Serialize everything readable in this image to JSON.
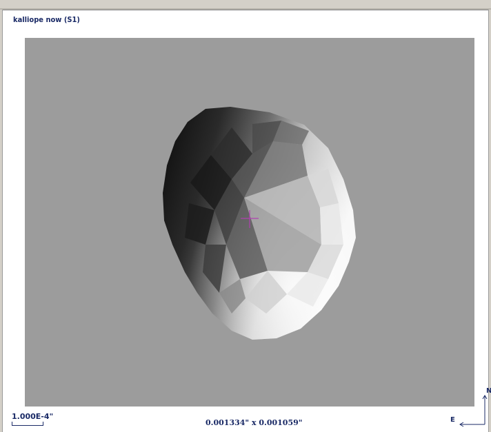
{
  "view": {
    "title": "kalliope now (S1)",
    "background_color": "#9c9c9c",
    "crosshair_color": "#b040b0",
    "text_color": "#1a2a66"
  },
  "scale_bar": {
    "label": "1.000E-4\""
  },
  "dimensions": {
    "label": "0.001334\" x 0.001059\""
  },
  "compass": {
    "north_label": "N",
    "east_label": "E"
  }
}
